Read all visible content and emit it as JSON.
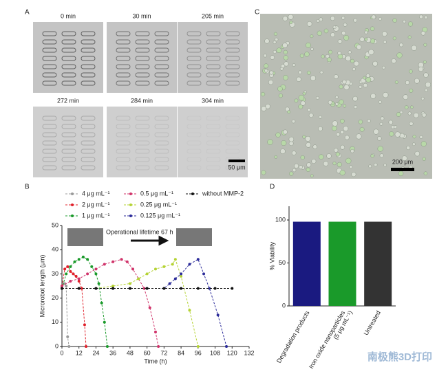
{
  "panels": {
    "a": "A",
    "b": "B",
    "c": "C",
    "d": "D"
  },
  "images": {
    "times": [
      "0 min",
      "30 min",
      "205 min",
      "272 min",
      "284 min",
      "304 min"
    ],
    "scale_a": "50 μm",
    "scale_c": "200 μm"
  },
  "watermark": "南极熊3D打印",
  "chart_data": [
    {
      "type": "line",
      "xlabel": "Time (h)",
      "ylabel": "Microrobot length (μm)",
      "xlim": [
        0,
        132
      ],
      "xticks": [
        0,
        12,
        24,
        36,
        48,
        60,
        72,
        84,
        96,
        108,
        120,
        132
      ],
      "ylim": [
        0,
        50
      ],
      "yticks": [
        0,
        10,
        20,
        30,
        40,
        50
      ],
      "annotation": "Operational lifetime 67 h",
      "series": [
        {
          "name": "4 μg mL⁻¹",
          "color": "#9a9a9a",
          "x": [
            0,
            1,
            2,
            3,
            4,
            5
          ],
          "values": [
            24,
            26,
            26,
            25,
            4,
            0
          ]
        },
        {
          "name": "2 μg mL⁻¹",
          "color": "#e0202a",
          "x": [
            0,
            2,
            4,
            6,
            8,
            10,
            12,
            14,
            16,
            17
          ],
          "values": [
            25,
            32,
            33,
            31,
            30,
            29,
            27,
            24,
            9,
            0
          ]
        },
        {
          "name": "1 μg mL⁻¹",
          "color": "#1a9a2a",
          "x": [
            0,
            3,
            6,
            9,
            12,
            15,
            18,
            21,
            24,
            26,
            28,
            30,
            32
          ],
          "values": [
            24,
            30,
            33,
            35,
            36,
            37,
            36,
            33,
            30,
            26,
            18,
            10,
            0
          ]
        },
        {
          "name": "0.5 μg mL⁻¹",
          "color": "#d0336a",
          "x": [
            0,
            6,
            12,
            18,
            24,
            30,
            36,
            42,
            46,
            50,
            54,
            58,
            62,
            66,
            68
          ],
          "values": [
            25,
            27,
            28,
            30,
            32,
            34,
            35,
            36,
            35,
            32,
            28,
            24,
            16,
            6,
            0
          ]
        },
        {
          "name": "0.25 μg mL⁻¹",
          "color": "#b5d334",
          "x": [
            0,
            12,
            24,
            36,
            48,
            54,
            60,
            66,
            72,
            78,
            80,
            84,
            90,
            96
          ],
          "values": [
            24,
            24,
            24,
            25,
            26,
            28,
            30,
            32,
            33,
            34,
            36,
            29,
            15,
            0
          ]
        },
        {
          "name": "0.125 μg mL⁻¹",
          "color": "#2b2b9a",
          "x": [
            0,
            12,
            24,
            36,
            48,
            60,
            72,
            76,
            80,
            84,
            90,
            96,
            100,
            104,
            110,
            116
          ],
          "values": [
            24,
            24,
            24,
            24,
            24,
            24,
            24,
            26,
            28,
            30,
            34,
            36,
            30,
            24,
            13,
            0
          ]
        },
        {
          "name": "without MMP-2",
          "color": "#111111",
          "x": [
            0,
            12,
            24,
            36,
            48,
            60,
            72,
            84,
            96,
            108,
            120
          ],
          "values": [
            24,
            24,
            24,
            24,
            24,
            24,
            24,
            24,
            24,
            24,
            24
          ]
        }
      ]
    },
    {
      "type": "bar",
      "ylabel": "% Viability",
      "ylim": [
        0,
        116
      ],
      "yticks": [
        0,
        50,
        100
      ],
      "categories": [
        "Degradation products",
        [
          "Iron oxide nanoparticles",
          "(5 μg mL⁻¹)"
        ],
        "Untreated"
      ],
      "values": [
        98,
        98,
        98
      ],
      "colors": [
        "#1a1a80",
        "#1a9a2a",
        "#333333"
      ]
    }
  ]
}
